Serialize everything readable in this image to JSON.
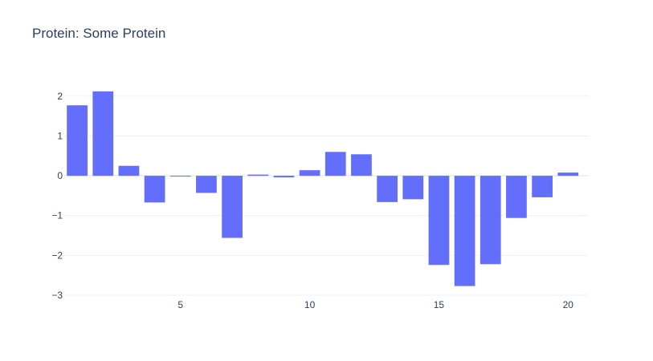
{
  "chart_data": {
    "type": "bar",
    "title": "Protein: Some Protein",
    "xlabel": "",
    "ylabel": "",
    "x": [
      1,
      2,
      3,
      4,
      5,
      6,
      7,
      8,
      9,
      10,
      11,
      12,
      13,
      14,
      15,
      16,
      17,
      18,
      19,
      20
    ],
    "values": [
      1.77,
      2.12,
      0.25,
      -0.67,
      -0.02,
      -0.43,
      -1.56,
      0.03,
      -0.04,
      0.14,
      0.6,
      0.54,
      -0.66,
      -0.59,
      -2.24,
      -2.77,
      -2.22,
      -1.06,
      -0.54,
      0.08
    ],
    "xlim": [
      0.5,
      20.8
    ],
    "ylim": [
      -3,
      2.4
    ],
    "x_ticks": [
      5,
      10,
      15,
      20
    ],
    "x_tick_labels": [
      "5",
      "10",
      "15",
      "20"
    ],
    "y_ticks": [
      -3,
      -2,
      -1,
      0,
      1,
      2
    ],
    "y_tick_labels": [
      "−3",
      "−2",
      "−1",
      "0",
      "1",
      "2"
    ],
    "grid": true,
    "bar_color": "#636efa",
    "grid_color": "#ebf0f8",
    "zero_line_color": "#ebf0f8"
  }
}
